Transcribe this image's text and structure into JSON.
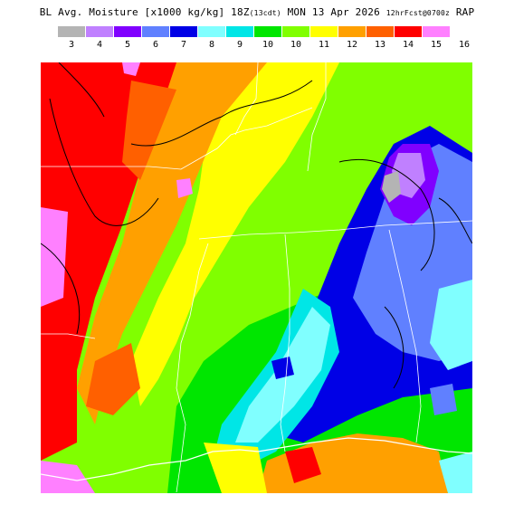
{
  "title": {
    "main": "BL Avg. Moisture [x1000 kg/kg] 18Z",
    "local_time": "(13cdt)",
    "date": "MON 13 Apr 2026",
    "forecast": "12hrFcst@0700z",
    "model": "RAP"
  },
  "legend": {
    "colors": [
      "#b4b4b4",
      "#c080ff",
      "#8000ff",
      "#6080ff",
      "#0000e6",
      "#80ffff",
      "#00e6e6",
      "#00e600",
      "#80ff00",
      "#ffff00",
      "#ffa000",
      "#ff6000",
      "#ff0000",
      "#ff80ff"
    ],
    "ticks": [
      "3",
      "4",
      "5",
      "6",
      "7",
      "8",
      "9",
      "10",
      "10",
      "11",
      "12",
      "13",
      "14",
      "15",
      "16"
    ]
  },
  "map": {
    "description_colors": {
      "pink": "#ff80ff",
      "red": "#ff0000",
      "orange_red": "#ff6000",
      "orange": "#ffa000",
      "yellow": "#ffff00",
      "light_green": "#80ff00",
      "green": "#00e600",
      "cyan": "#00e6e6",
      "light_cyan": "#80ffff",
      "blue": "#0000e6",
      "light_blue": "#6080ff",
      "violet": "#8000ff",
      "lavender": "#c080ff",
      "gray": "#b4b4b4"
    }
  }
}
